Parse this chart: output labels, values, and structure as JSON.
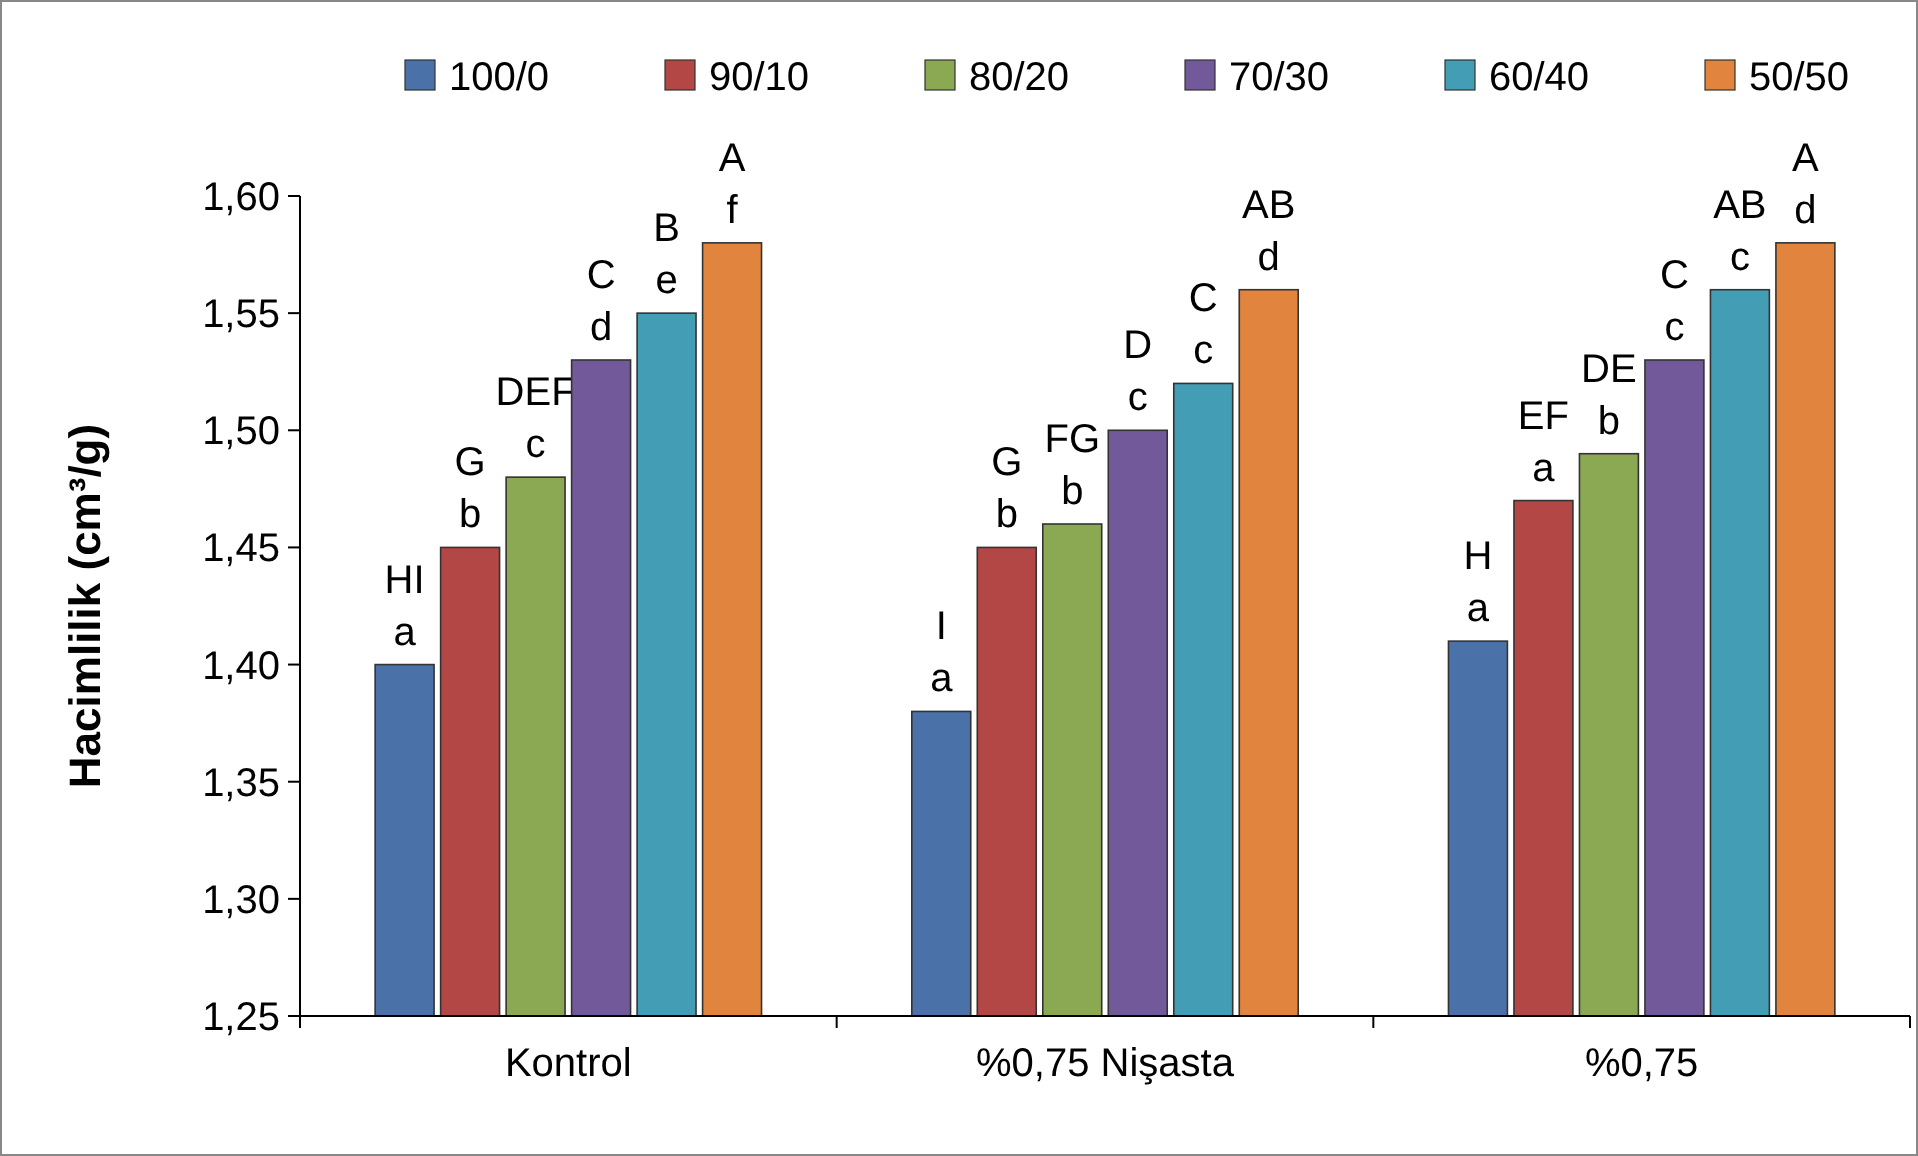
{
  "chart_data": {
    "type": "bar",
    "ylabel": "Hacimlilik (cm³/g)",
    "categories": [
      "Kontrol",
      "%0,75 Nişasta",
      "%0,75"
    ],
    "series": [
      {
        "name": "100/0",
        "color": "#4a72a8",
        "values": [
          1.4,
          1.38,
          1.41
        ],
        "value_labels": [
          "HI\na",
          "I\na",
          "H\na"
        ]
      },
      {
        "name": "90/10",
        "color": "#b24745",
        "values": [
          1.45,
          1.45,
          1.47
        ],
        "value_labels": [
          "G\nb",
          "G\nb",
          "EF\na"
        ]
      },
      {
        "name": "80/20",
        "color": "#8ba852",
        "values": [
          1.48,
          1.46,
          1.49
        ],
        "value_labels": [
          "DEF\nc",
          "FG\nb",
          "DE\nb"
        ]
      },
      {
        "name": "70/30",
        "color": "#72599a",
        "values": [
          1.53,
          1.5,
          1.53
        ],
        "value_labels": [
          "C\nd",
          "D\nc",
          "C\nc"
        ]
      },
      {
        "name": "60/40",
        "color": "#439db4",
        "values": [
          1.55,
          1.52,
          1.56
        ],
        "value_labels": [
          "B\ne",
          "C\nc",
          "AB\nc"
        ]
      },
      {
        "name": "50/50",
        "color": "#e0843e",
        "values": [
          1.58,
          1.56,
          1.58
        ],
        "value_labels": [
          "A\nf",
          "AB\nd",
          "A\nd"
        ]
      }
    ],
    "ylim": [
      1.25,
      1.6
    ],
    "yticks": [
      {
        "value": 1.25,
        "label": "1,25"
      },
      {
        "value": 1.3,
        "label": "1,30"
      },
      {
        "value": 1.35,
        "label": "1,35"
      },
      {
        "value": 1.4,
        "label": "1,40"
      },
      {
        "value": 1.45,
        "label": "1,45"
      },
      {
        "value": 1.5,
        "label": "1,50"
      },
      {
        "value": 1.55,
        "label": "1,55"
      },
      {
        "value": 1.6,
        "label": "1,60"
      }
    ],
    "grid": false,
    "legend": "top"
  }
}
